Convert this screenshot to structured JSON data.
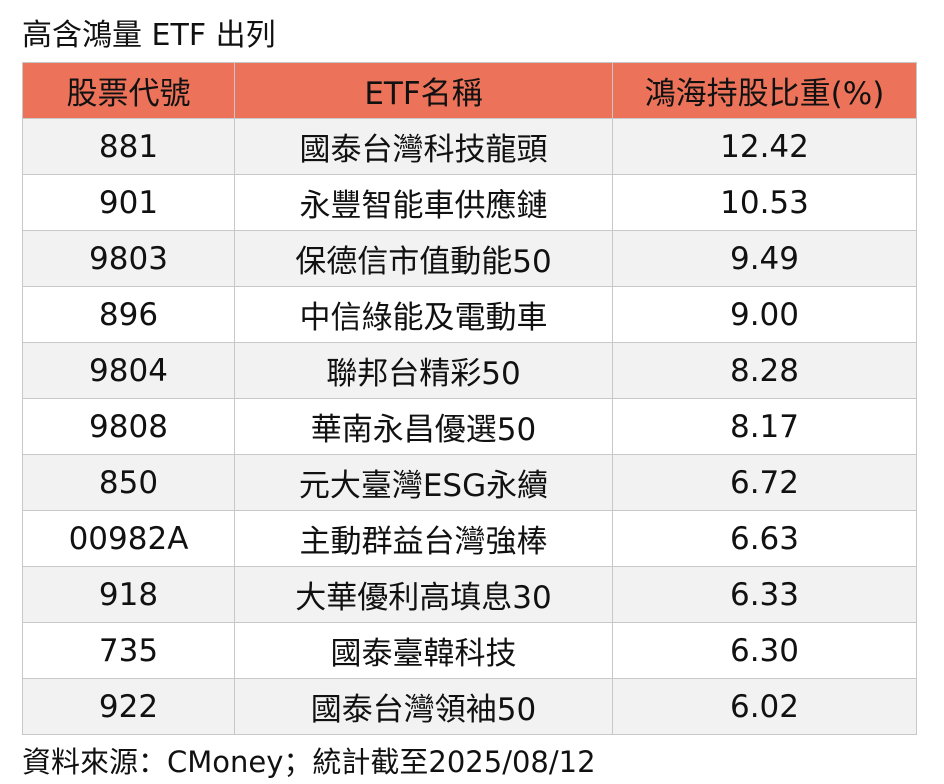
{
  "header": {
    "title": "高含鴻量 ETF 出列"
  },
  "table": {
    "columns": [
      "股票代號",
      "ETF名稱",
      "鴻海持股比重(%)"
    ],
    "rows": [
      [
        "881",
        "國泰台灣科技龍頭",
        "12.42"
      ],
      [
        "901",
        "永豐智能車供應鏈",
        "10.53"
      ],
      [
        "9803",
        "保德信市值動能50",
        "9.49"
      ],
      [
        "896",
        "中信綠能及電動車",
        "9.00"
      ],
      [
        "9804",
        "聯邦台精彩50",
        "8.28"
      ],
      [
        "9808",
        "華南永昌優選50",
        "8.17"
      ],
      [
        "850",
        "元大臺灣ESG永續",
        "6.72"
      ],
      [
        "00982A",
        "主動群益台灣強棒",
        "6.63"
      ],
      [
        "918",
        "大華優利高填息30",
        "6.33"
      ],
      [
        "735",
        "國泰臺韓科技",
        "6.30"
      ],
      [
        "922",
        "國泰台灣領袖50",
        "6.02"
      ]
    ]
  },
  "footer": {
    "source": "資料來源：CMoney；統計截至2025/08/12"
  }
}
